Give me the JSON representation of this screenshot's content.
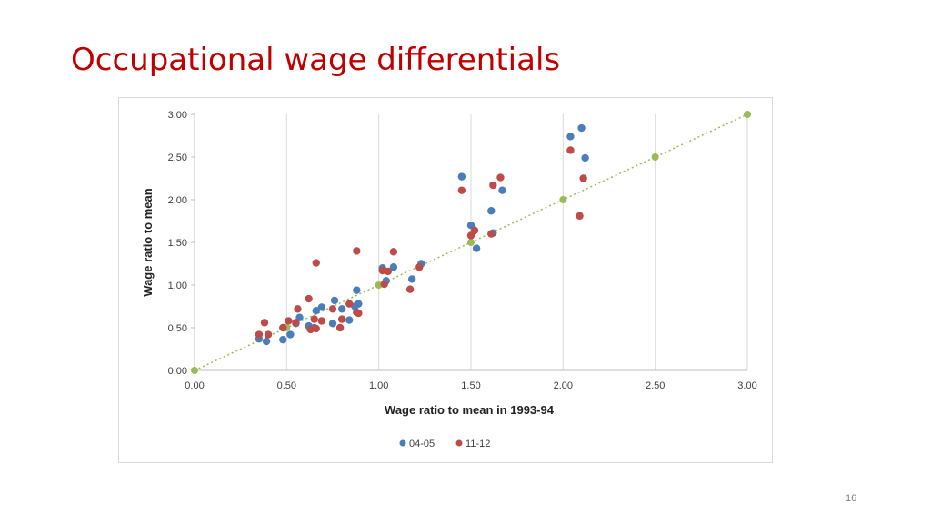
{
  "slide": {
    "title": "Occupational wage differentials",
    "page_number": "16"
  },
  "colors": {
    "title": "#c00000",
    "series_0405": "#4a7ebb",
    "series_1112": "#be4b48",
    "reference": "#9bbb59"
  },
  "chart_data": {
    "type": "scatter",
    "title": "",
    "xlabel": "Wage ratio to mean in 1993-94",
    "ylabel": "Wage ratio to mean",
    "xlim": [
      0,
      3
    ],
    "ylim": [
      0,
      3
    ],
    "xticks": [
      "0.00",
      "0.50",
      "1.00",
      "1.50",
      "2.00",
      "2.50",
      "3.00"
    ],
    "yticks": [
      "0.00",
      "0.50",
      "1.00",
      "1.50",
      "2.00",
      "2.50",
      "3.00"
    ],
    "grid": "vertical",
    "legend_position": "bottom",
    "reference_line": {
      "style": "dotted",
      "points": [
        [
          0,
          0
        ],
        [
          0.5,
          0.5
        ],
        [
          1.0,
          1.0
        ],
        [
          1.5,
          1.5
        ],
        [
          2.0,
          2.0
        ],
        [
          2.5,
          2.5
        ],
        [
          3.0,
          3.0
        ]
      ]
    },
    "series": [
      {
        "name": "04-05",
        "points": [
          [
            0.35,
            0.37
          ],
          [
            0.39,
            0.34
          ],
          [
            0.48,
            0.36
          ],
          [
            0.52,
            0.42
          ],
          [
            0.55,
            0.55
          ],
          [
            0.57,
            0.62
          ],
          [
            0.62,
            0.52
          ],
          [
            0.65,
            0.5
          ],
          [
            0.66,
            0.7
          ],
          [
            0.69,
            0.74
          ],
          [
            0.75,
            0.55
          ],
          [
            0.76,
            0.82
          ],
          [
            0.8,
            0.72
          ],
          [
            0.84,
            0.59
          ],
          [
            0.87,
            0.75
          ],
          [
            0.88,
            0.94
          ],
          [
            0.89,
            0.78
          ],
          [
            1.02,
            1.2
          ],
          [
            1.04,
            1.05
          ],
          [
            1.08,
            1.21
          ],
          [
            1.18,
            1.07
          ],
          [
            1.23,
            1.25
          ],
          [
            1.45,
            2.27
          ],
          [
            1.5,
            1.7
          ],
          [
            1.53,
            1.43
          ],
          [
            1.61,
            1.87
          ],
          [
            1.62,
            1.61
          ],
          [
            1.67,
            2.11
          ],
          [
            2.04,
            2.74
          ],
          [
            2.1,
            2.84
          ],
          [
            2.12,
            2.49
          ]
        ]
      },
      {
        "name": "11-12",
        "points": [
          [
            0.35,
            0.42
          ],
          [
            0.38,
            0.56
          ],
          [
            0.4,
            0.42
          ],
          [
            0.48,
            0.5
          ],
          [
            0.51,
            0.58
          ],
          [
            0.55,
            0.56
          ],
          [
            0.56,
            0.72
          ],
          [
            0.62,
            0.84
          ],
          [
            0.63,
            0.48
          ],
          [
            0.65,
            0.6
          ],
          [
            0.66,
            1.26
          ],
          [
            0.66,
            0.49
          ],
          [
            0.69,
            0.58
          ],
          [
            0.75,
            0.72
          ],
          [
            0.79,
            0.5
          ],
          [
            0.8,
            0.6
          ],
          [
            0.84,
            0.78
          ],
          [
            0.88,
            0.68
          ],
          [
            0.88,
            1.4
          ],
          [
            0.89,
            0.67
          ],
          [
            1.02,
            1.17
          ],
          [
            1.03,
            1.01
          ],
          [
            1.05,
            1.16
          ],
          [
            1.08,
            1.39
          ],
          [
            1.17,
            0.95
          ],
          [
            1.22,
            1.21
          ],
          [
            1.45,
            2.11
          ],
          [
            1.5,
            1.58
          ],
          [
            1.52,
            1.64
          ],
          [
            1.61,
            1.6
          ],
          [
            1.62,
            2.17
          ],
          [
            1.66,
            2.26
          ],
          [
            2.04,
            2.58
          ],
          [
            2.09,
            1.81
          ],
          [
            2.11,
            2.25
          ]
        ]
      }
    ]
  }
}
